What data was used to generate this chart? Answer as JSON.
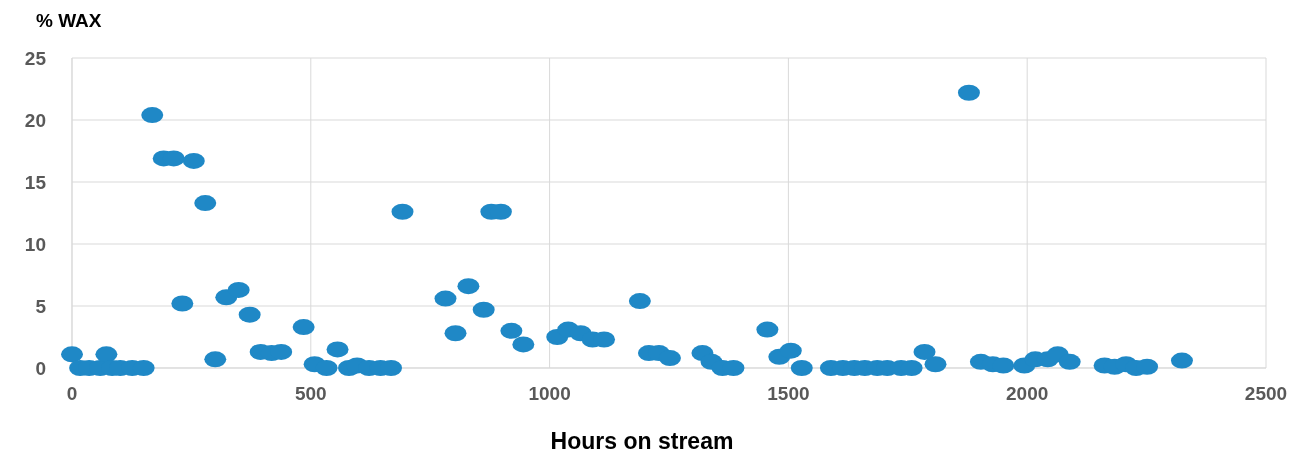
{
  "chart_data": {
    "type": "scatter",
    "xlabel": "Hours on stream",
    "ylabel": "% WAX",
    "x": [
      0,
      17,
      36,
      59,
      72,
      84,
      101,
      126,
      150,
      168,
      192,
      213,
      255,
      279,
      231,
      300,
      323,
      349,
      372,
      395,
      418,
      438,
      485,
      508,
      533,
      556,
      580,
      597,
      622,
      646,
      668,
      692,
      782,
      803,
      830,
      862,
      878,
      898,
      920,
      945,
      1016,
      1039,
      1065,
      1090,
      1114,
      1189,
      1208,
      1229,
      1252,
      1320,
      1339,
      1362,
      1385,
      1456,
      1481,
      1505,
      1528,
      1589,
      1614,
      1638,
      1660,
      1686,
      1707,
      1736,
      1758,
      1785,
      1808,
      1878,
      1903,
      1928,
      1950,
      1994,
      2017,
      2043,
      2064,
      2089,
      2162,
      2183,
      2207,
      2228,
      2251,
      2324
    ],
    "series": [
      {
        "color": "#1f88c6",
        "values": [
          1.1,
          0,
          0,
          0,
          1.1,
          0,
          0,
          0,
          0,
          20.4,
          16.9,
          16.9,
          16.7,
          13.3,
          5.2,
          0.7,
          5.7,
          6.3,
          4.3,
          1.3,
          1.2,
          1.3,
          3.3,
          0.3,
          0,
          1.5,
          0,
          0.2,
          0,
          0,
          0,
          12.6,
          5.6,
          2.8,
          6.6,
          4.7,
          12.6,
          12.6,
          3.0,
          1.9,
          2.5,
          3.1,
          2.8,
          2.3,
          2.3,
          5.4,
          1.2,
          1.2,
          0.8,
          1.2,
          0.5,
          0,
          0,
          3.1,
          0.9,
          1.4,
          0,
          0,
          0,
          0,
          0,
          0,
          0,
          0,
          0,
          1.3,
          0.3,
          22.2,
          0.5,
          0.3,
          0.2,
          0.2,
          0.7,
          0.7,
          1.1,
          0.5,
          0.2,
          0.1,
          0.3,
          0,
          0.1,
          0.6
        ]
      }
    ],
    "xlim": [
      0,
      2500
    ],
    "xticks": [
      0,
      500,
      1000,
      1500,
      2000,
      2500
    ],
    "ylim": [
      0,
      25
    ],
    "yticks": [
      0,
      5,
      10,
      15,
      20,
      25
    ],
    "grid": true,
    "marker": "circle"
  }
}
